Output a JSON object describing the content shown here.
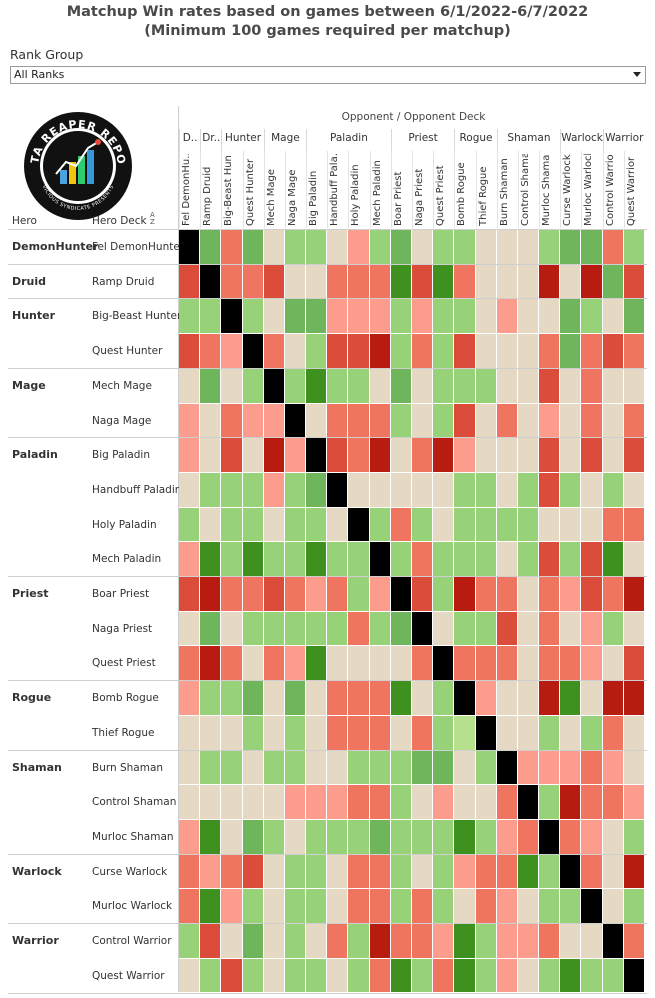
{
  "page": {
    "title_line1": "Matchup Win rates based on games between 6/1/2022-6/7/2022",
    "title_line2": "(Minimum 100 games required per matchup)",
    "rank_group_label": "Rank Group",
    "rank_group_value": "All Ranks",
    "opponent_header": "Opponent / Opponent Deck",
    "hero_col_label": "Hero",
    "deck_col_label": "Hero Deck",
    "logo_text": "DATA REAPER REPORT",
    "logo_subtext": "VICIOUS SYNDICATE PRESENTS"
  },
  "opponent_heroes": [
    {
      "label": "D..",
      "span": 1
    },
    {
      "label": "Dr..",
      "span": 1
    },
    {
      "label": "Hunter",
      "span": 2
    },
    {
      "label": "Mage",
      "span": 2
    },
    {
      "label": "Paladin",
      "span": 4
    },
    {
      "label": "Priest",
      "span": 3
    },
    {
      "label": "Rogue",
      "span": 2
    },
    {
      "label": "Shaman",
      "span": 3
    },
    {
      "label": "Warlock",
      "span": 2
    },
    {
      "label": "Warrior",
      "span": 2
    }
  ],
  "opponent_decks": [
    "Fel DemonHu..",
    "Ramp Druid",
    "Big-Beast Hun..",
    "Quest Hunter",
    "Mech Mage",
    "Naga Mage",
    "Big Paladin",
    "Handbuff Pala..",
    "Holy Paladin",
    "Mech Paladin",
    "Boar Priest",
    "Naga Priest",
    "Quest Priest",
    "Bomb Rogue",
    "Thief Rogue",
    "Burn Shaman",
    "Control Shaman",
    "Murloc Shaman",
    "Curse Warlock",
    "Murloc Warlock",
    "Control Warrior",
    "Quest Warrior"
  ],
  "hero_groups": [
    {
      "hero": "DemonHunter",
      "decks": [
        "Fel DemonHunter"
      ]
    },
    {
      "hero": "Druid",
      "decks": [
        "Ramp Druid"
      ]
    },
    {
      "hero": "Hunter",
      "decks": [
        "Big-Beast Hunter",
        "Quest Hunter"
      ]
    },
    {
      "hero": "Mage",
      "decks": [
        "Mech Mage",
        "Naga Mage"
      ]
    },
    {
      "hero": "Paladin",
      "decks": [
        "Big Paladin",
        "Handbuff Paladin",
        "Holy Paladin",
        "Mech Paladin"
      ]
    },
    {
      "hero": "Priest",
      "decks": [
        "Boar Priest",
        "Naga Priest",
        "Quest Priest"
      ]
    },
    {
      "hero": "Rogue",
      "decks": [
        "Bomb Rogue",
        "Thief Rogue"
      ]
    },
    {
      "hero": "Shaman",
      "decks": [
        "Burn Shaman",
        "Control Shaman",
        "Murloc Shaman"
      ]
    },
    {
      "hero": "Warlock",
      "decks": [
        "Curse Warlock",
        "Murloc Warlock"
      ]
    },
    {
      "hero": "Warrior",
      "decks": [
        "Control Warrior",
        "Quest Warrior"
      ]
    }
  ],
  "colors": {
    "mirror": "#000000",
    "-3": "#b81c10",
    "-2": "#dc4c3a",
    "-1": "#f07560",
    "-0.5": "#fb9c8c",
    "0": "#e5d9c3",
    "0.5": "#b6e08c",
    "1": "#98d278",
    "2": "#6eb55c",
    "3": "#3f911f"
  },
  "chart_data": {
    "type": "heatmap",
    "title": "Matchup Win rates based on games between 6/1/2022-6/7/2022",
    "subtitle": "(Minimum 100 games required per matchup)",
    "xlabel": "Opponent / Opponent Deck",
    "ylabel": "Hero Deck",
    "note": "Cell values are approximate colour levels read from the image: -3 strongly unfavoured (dark red) … 0 even (beige) … 3 strongly favoured (dark green); null = mirror (black).",
    "rows": [
      "Fel DemonHunter",
      "Ramp Druid",
      "Big-Beast Hunter",
      "Quest Hunter",
      "Mech Mage",
      "Naga Mage",
      "Big Paladin",
      "Handbuff Paladin",
      "Holy Paladin",
      "Mech Paladin",
      "Boar Priest",
      "Naga Priest",
      "Quest Priest",
      "Bomb Rogue",
      "Thief Rogue",
      "Burn Shaman",
      "Control Shaman",
      "Murloc Shaman",
      "Curse Warlock",
      "Murloc Warlock",
      "Control Warrior",
      "Quest Warrior"
    ],
    "columns": [
      "Fel DemonHunter",
      "Ramp Druid",
      "Big-Beast Hunter",
      "Quest Hunter",
      "Mech Mage",
      "Naga Mage",
      "Big Paladin",
      "Handbuff Paladin",
      "Holy Paladin",
      "Mech Paladin",
      "Boar Priest",
      "Naga Priest",
      "Quest Priest",
      "Bomb Rogue",
      "Thief Rogue",
      "Burn Shaman",
      "Control Shaman",
      "Murloc Shaman",
      "Curse Warlock",
      "Murloc Warlock",
      "Control Warrior",
      "Quest Warrior"
    ],
    "values": [
      [
        null,
        2,
        -1,
        2,
        0,
        1,
        1,
        0,
        -0.5,
        1,
        2,
        0,
        1,
        1,
        0,
        0,
        0,
        1,
        2,
        2,
        -1,
        1
      ],
      [
        -2,
        null,
        -1,
        -1,
        -2,
        0,
        0,
        -1,
        -1,
        -1,
        3,
        -2,
        3,
        -1,
        0,
        0,
        0,
        -3,
        0,
        -3,
        2,
        -2
      ],
      [
        1,
        1,
        null,
        1,
        0,
        2,
        2,
        -0.5,
        -0.5,
        -0.5,
        1,
        -0.5,
        1,
        1,
        0,
        -0.5,
        0,
        0,
        2,
        1,
        0,
        2
      ],
      [
        -2,
        -1,
        -0.5,
        null,
        -1,
        0,
        1,
        -2,
        -2,
        -3,
        1,
        -1,
        1,
        -2,
        0,
        0,
        0,
        -1,
        2,
        -1,
        -2,
        -1
      ],
      [
        0,
        2,
        0,
        1,
        null,
        1,
        3,
        1,
        1,
        0,
        2,
        0,
        1,
        1,
        1,
        0,
        0,
        -2,
        0,
        -1,
        0,
        0
      ],
      [
        -0.5,
        0,
        -1,
        -0.5,
        -0.5,
        null,
        0,
        -1,
        -1,
        -1,
        1,
        0,
        1,
        -2,
        0,
        -1,
        0,
        -0.5,
        0,
        -1,
        0,
        -1
      ],
      [
        -0.5,
        0,
        -2,
        0,
        -3,
        -0.5,
        null,
        -2,
        -1,
        -3,
        0,
        -1,
        -3,
        -0.5,
        0,
        0,
        0,
        -2,
        0,
        -2,
        0,
        -2
      ],
      [
        0,
        1,
        1,
        1,
        -0.5,
        1,
        2,
        null,
        0,
        0,
        0,
        0,
        0,
        1,
        1,
        0,
        1,
        -2,
        1,
        0,
        1,
        0
      ],
      [
        1,
        0,
        1,
        1,
        0,
        1,
        1,
        0,
        null,
        1,
        -1,
        1,
        0,
        1,
        1,
        1,
        1,
        0,
        0,
        0,
        -1,
        -1
      ],
      [
        -0.5,
        3,
        1,
        3,
        1,
        1,
        3,
        1,
        1,
        null,
        1,
        -1,
        1,
        1,
        1,
        0,
        1,
        -2,
        1,
        -2,
        3,
        0
      ],
      [
        -2,
        -3,
        -1,
        -1,
        -2,
        -1,
        -0.5,
        -1,
        1,
        -0.5,
        null,
        -2,
        1,
        -3,
        -1,
        -1,
        0,
        -1,
        -0.5,
        -2,
        -1,
        -3
      ],
      [
        0,
        2,
        0,
        1,
        1,
        1,
        1,
        1,
        -1,
        1,
        2,
        null,
        0,
        1,
        1,
        -2,
        0,
        -1,
        0,
        -0.5,
        1,
        0
      ],
      [
        -1,
        -3,
        -1,
        0,
        -1,
        -0.5,
        3,
        0,
        0,
        0,
        0,
        -1,
        null,
        -1,
        -1,
        -1,
        0,
        -1,
        -1,
        -0.5,
        0,
        -2
      ],
      [
        -0.5,
        1,
        1,
        2,
        0,
        2,
        0,
        -1,
        -1,
        -1,
        3,
        0,
        1,
        null,
        -0.5,
        0,
        0,
        -3,
        3,
        0,
        -3,
        -3
      ],
      [
        0,
        0,
        0,
        1,
        0,
        1,
        0,
        -1,
        -1,
        -1,
        0,
        -1,
        1,
        0.5,
        null,
        0,
        0,
        1,
        0,
        1,
        -1,
        0
      ],
      [
        0,
        1,
        1,
        0,
        1,
        1,
        0,
        0,
        1,
        1,
        1,
        2,
        2,
        0,
        1,
        null,
        -0.5,
        -0.5,
        -0.5,
        -1,
        -0.5,
        0
      ],
      [
        0,
        0,
        0,
        0,
        0,
        -0.5,
        -0.5,
        -0.5,
        -1,
        -1,
        1,
        0,
        -0.5,
        0,
        0,
        -1,
        null,
        1,
        -3,
        -1,
        -1,
        -0.5
      ],
      [
        -0.5,
        3,
        0,
        2,
        1,
        0,
        1,
        1,
        1,
        2,
        1,
        1,
        1,
        3,
        1,
        -0.5,
        -1,
        null,
        -1,
        -0.5,
        0,
        1
      ],
      [
        -1,
        -0.5,
        -1,
        -2,
        0,
        1,
        1,
        0,
        -1,
        -1,
        1,
        0,
        1,
        -0.5,
        -1,
        -1,
        3,
        1,
        null,
        -1,
        0,
        -3
      ],
      [
        -1,
        3,
        -0.5,
        1,
        0,
        1,
        1,
        0,
        -1,
        -1,
        1,
        -1,
        1,
        0,
        -1,
        -0.5,
        0,
        1,
        1,
        null,
        0,
        1
      ],
      [
        1,
        -2,
        0,
        2,
        0,
        1,
        0,
        -1,
        1,
        -3,
        -1,
        -1,
        -0.5,
        3,
        1,
        -0.5,
        -0.5,
        -1,
        0,
        0,
        null,
        -1
      ],
      [
        0,
        1,
        -2,
        1,
        0,
        1,
        1,
        0,
        1,
        -1,
        3,
        1,
        -1,
        3,
        1,
        -0.5,
        0,
        1,
        3,
        1,
        1,
        null
      ]
    ]
  }
}
